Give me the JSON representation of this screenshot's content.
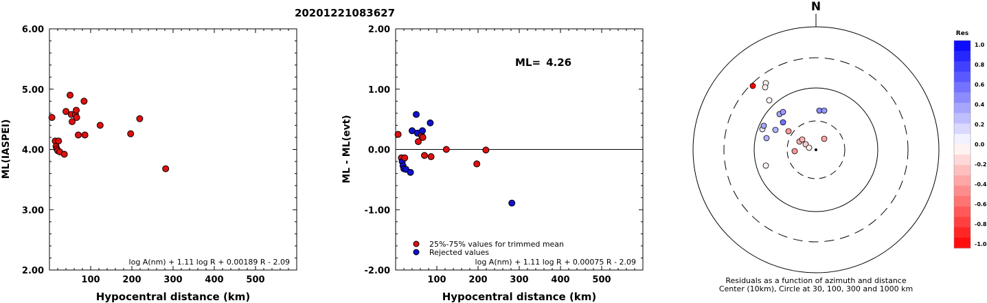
{
  "event_title": "20201221083627",
  "chart_data": [
    {
      "type": "scatter",
      "ylabel": "ML(IASPEI)",
      "xlabel": "Hypocentral distance (km)",
      "xlim": [
        0,
        600
      ],
      "ylim": [
        2.0,
        6.0
      ],
      "x_ticks": [
        "100",
        "200",
        "300",
        "400",
        "500"
      ],
      "y_ticks": [
        "2.00",
        "3.00",
        "4.00",
        "5.00",
        "6.00"
      ],
      "formula": "log A(nm) + 1.11 log R + 0.00189 R - 2.09",
      "point_color": "#dd1111",
      "points": [
        {
          "x": 6,
          "y": 4.53
        },
        {
          "x": 14,
          "y": 4.14
        },
        {
          "x": 16,
          "y": 4.05
        },
        {
          "x": 18,
          "y": 4.01
        },
        {
          "x": 20,
          "y": 3.98
        },
        {
          "x": 22,
          "y": 4.14
        },
        {
          "x": 25,
          "y": 3.96
        },
        {
          "x": 36,
          "y": 3.92
        },
        {
          "x": 40,
          "y": 4.63
        },
        {
          "x": 50,
          "y": 4.9
        },
        {
          "x": 53,
          "y": 4.58
        },
        {
          "x": 55,
          "y": 4.46
        },
        {
          "x": 63,
          "y": 4.58
        },
        {
          "x": 65,
          "y": 4.65
        },
        {
          "x": 66,
          "y": 4.53
        },
        {
          "x": 70,
          "y": 4.24
        },
        {
          "x": 84,
          "y": 4.8
        },
        {
          "x": 86,
          "y": 4.24
        },
        {
          "x": 123,
          "y": 4.4
        },
        {
          "x": 197,
          "y": 4.26
        },
        {
          "x": 219,
          "y": 4.51
        },
        {
          "x": 282,
          "y": 3.68
        }
      ]
    },
    {
      "type": "scatter",
      "ylabel": "ML - ML(evt)",
      "xlabel": "Hypocentral distance (km)",
      "xlim": [
        0,
        600
      ],
      "ylim": [
        -2.0,
        2.0
      ],
      "x_ticks": [
        "100",
        "200",
        "300",
        "400",
        "500"
      ],
      "y_ticks": [
        "-2.00",
        "-1.00",
        "0.00",
        "1.00",
        "2.00"
      ],
      "ml_label": "ML=",
      "ml_value": "4.26",
      "formula": "log A(nm) + 1.11 log R + 0.00075 R - 2.09",
      "legend": [
        {
          "label": "25%-75% values for trimmed mean",
          "color": "#dd1111"
        },
        {
          "label": "Rejected values",
          "color": "#1111cc"
        }
      ],
      "zero_line": true,
      "points": [
        {
          "x": 6,
          "y": 0.25,
          "status": "used"
        },
        {
          "x": 14,
          "y": -0.14,
          "status": "used"
        },
        {
          "x": 16,
          "y": -0.2,
          "status": "rejected"
        },
        {
          "x": 18,
          "y": -0.27,
          "status": "rejected"
        },
        {
          "x": 20,
          "y": -0.32,
          "status": "rejected"
        },
        {
          "x": 22,
          "y": -0.14,
          "status": "used"
        },
        {
          "x": 25,
          "y": -0.33,
          "status": "rejected"
        },
        {
          "x": 36,
          "y": -0.38,
          "status": "rejected"
        },
        {
          "x": 40,
          "y": 0.31,
          "status": "rejected"
        },
        {
          "x": 50,
          "y": 0.58,
          "status": "rejected"
        },
        {
          "x": 53,
          "y": 0.27,
          "status": "rejected"
        },
        {
          "x": 55,
          "y": 0.13,
          "status": "used"
        },
        {
          "x": 63,
          "y": 0.23,
          "status": "used"
        },
        {
          "x": 65,
          "y": 0.31,
          "status": "rejected"
        },
        {
          "x": 66,
          "y": 0.2,
          "status": "used"
        },
        {
          "x": 70,
          "y": -0.1,
          "status": "used"
        },
        {
          "x": 84,
          "y": 0.44,
          "status": "rejected"
        },
        {
          "x": 86,
          "y": -0.12,
          "status": "used"
        },
        {
          "x": 123,
          "y": 0.0,
          "status": "used"
        },
        {
          "x": 197,
          "y": -0.24,
          "status": "used"
        },
        {
          "x": 219,
          "y": -0.01,
          "status": "used"
        },
        {
          "x": 282,
          "y": -0.89,
          "status": "rejected"
        }
      ]
    },
    {
      "type": "scatter",
      "subtype": "polar",
      "north_label": "N",
      "caption_line1": "Residuals as a function of azimuth and distance",
      "caption_line2": "Center (10km), Circle at 30, 100, 300 and 1000 km",
      "rings_km": [
        30,
        100,
        300,
        1000
      ],
      "colorbar": {
        "title": "Res",
        "min": -1.0,
        "max": 1.0,
        "tick_labels": [
          "1.0",
          "0.8",
          "0.6",
          "0.4",
          "0.2",
          "0.0",
          "-0.2",
          "-0.4",
          "-0.6",
          "-0.8",
          "-1.0"
        ],
        "positive_color": "#0000ff",
        "negative_color": "#ff0000"
      },
      "stations": [
        {
          "dx": -92,
          "dy": 93,
          "res": -1.0
        },
        {
          "dx": -73,
          "dy": 97,
          "res": -0.05
        },
        {
          "dx": -74,
          "dy": 91,
          "res": -0.05
        },
        {
          "dx": -68,
          "dy": 72,
          "res": -0.05
        },
        {
          "dx": -53,
          "dy": 52,
          "res": 0.35
        },
        {
          "dx": -48,
          "dy": 55,
          "res": 0.4
        },
        {
          "dx": -48,
          "dy": 40,
          "res": 0.55
        },
        {
          "dx": -78,
          "dy": 30,
          "res": 0.1
        },
        {
          "dx": -76,
          "dy": 35,
          "res": 0.35
        },
        {
          "dx": -59,
          "dy": 29,
          "res": 0.3
        },
        {
          "dx": -72,
          "dy": 17,
          "res": 0.3
        },
        {
          "dx": -40,
          "dy": 27,
          "res": -0.4
        },
        {
          "dx": 5,
          "dy": 57,
          "res": 0.45
        },
        {
          "dx": 12,
          "dy": 57,
          "res": 0.4
        },
        {
          "dx": -24,
          "dy": 12,
          "res": -0.3
        },
        {
          "dx": -20,
          "dy": 15,
          "res": -0.3
        },
        {
          "dx": -15,
          "dy": 8,
          "res": -0.2
        },
        {
          "dx": -10,
          "dy": 3,
          "res": -0.05
        },
        {
          "dx": 12,
          "dy": 16,
          "res": -0.35
        },
        {
          "dx": -31,
          "dy": -2,
          "res": -0.4
        },
        {
          "dx": -73,
          "dy": -23,
          "res": -0.05
        }
      ]
    }
  ]
}
